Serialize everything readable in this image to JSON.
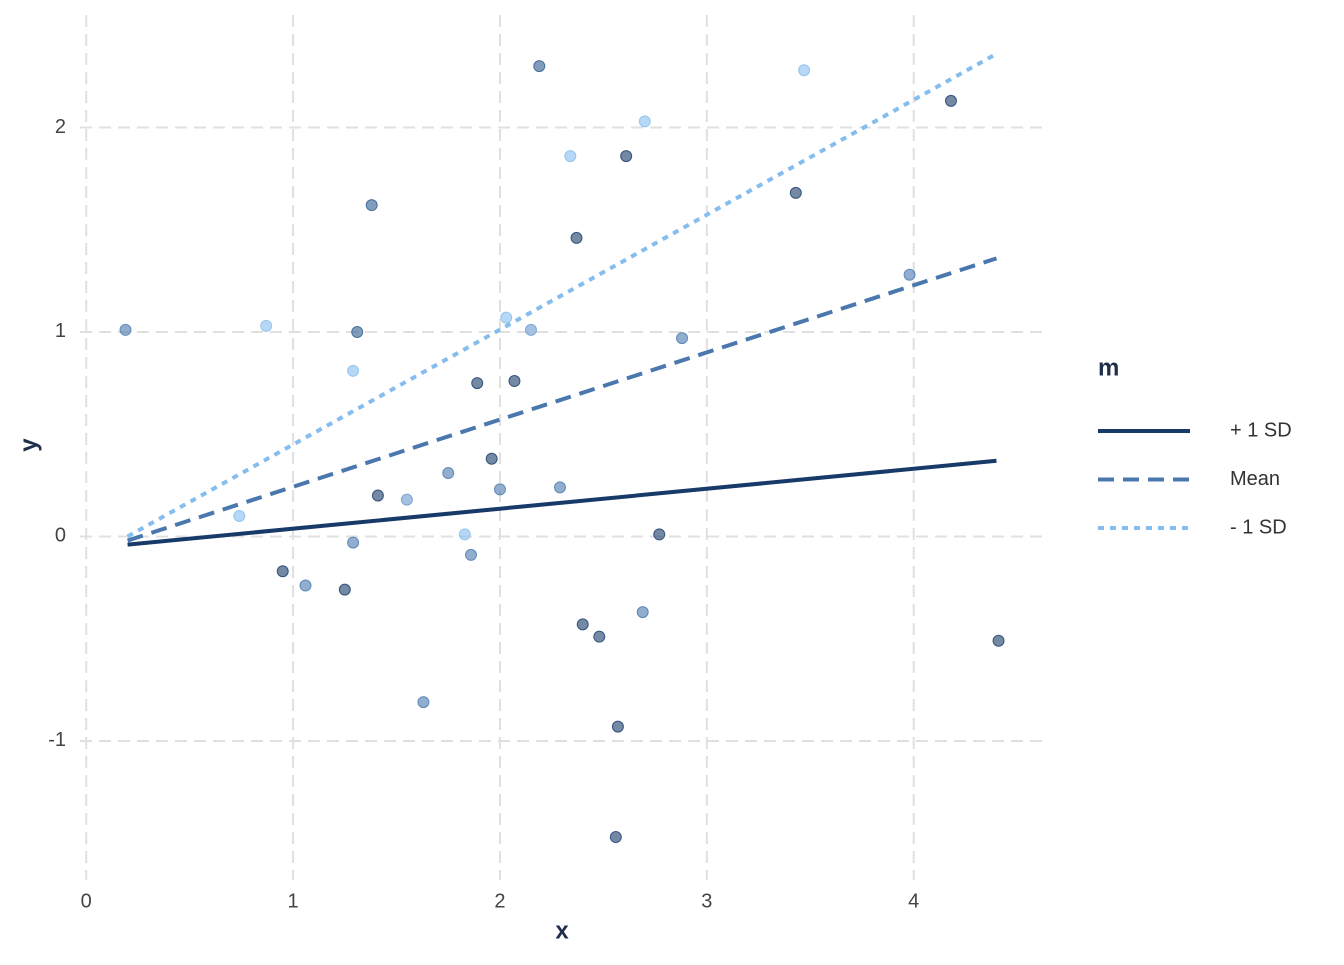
{
  "chart_data": {
    "type": "scatter",
    "xlabel": "x",
    "ylabel": "y",
    "xlim": [
      -0.03,
      4.62
    ],
    "ylim": [
      -1.68,
      2.55
    ],
    "xticks": [
      0,
      1,
      2,
      3,
      4
    ],
    "yticks": [
      -1,
      0,
      1,
      2
    ],
    "grid": true,
    "legend_title": "m",
    "legend_position": "right",
    "series": [
      {
        "name": "+ 1 SD",
        "color": "#173a68",
        "dash": "solid",
        "x": [
          0.2,
          4.4
        ],
        "y": [
          -0.04,
          0.37
        ]
      },
      {
        "name": "Mean",
        "color": "#4a78ae",
        "dash": "dashed",
        "x": [
          0.2,
          4.4
        ],
        "y": [
          -0.02,
          1.36
        ]
      },
      {
        "name": "- 1 SD",
        "color": "#85bdee",
        "dash": "dotted",
        "x": [
          0.2,
          4.4
        ],
        "y": [
          0.0,
          2.36
        ]
      }
    ],
    "points": {
      "x": [
        0.19,
        0.87,
        0.74,
        0.95,
        1.06,
        1.25,
        1.29,
        1.29,
        1.31,
        1.38,
        1.41,
        1.55,
        1.63,
        1.75,
        1.83,
        1.86,
        1.89,
        1.96,
        2.0,
        2.03,
        2.07,
        2.15,
        2.19,
        2.29,
        2.34,
        2.37,
        2.4,
        2.48,
        2.56,
        2.57,
        2.61,
        2.69,
        2.7,
        2.77,
        2.88,
        3.43,
        3.47,
        3.98,
        4.18,
        4.41
      ],
      "y": [
        1.01,
        1.03,
        0.1,
        -0.17,
        -0.24,
        -0.26,
        -0.03,
        0.81,
        1.0,
        1.62,
        0.2,
        0.18,
        -0.81,
        0.31,
        0.01,
        -0.09,
        0.75,
        0.38,
        0.23,
        1.07,
        0.76,
        1.01,
        2.3,
        0.24,
        1.86,
        1.46,
        -0.43,
        -0.49,
        -1.47,
        -0.93,
        1.86,
        -0.37,
        2.03,
        0.01,
        0.97,
        1.68,
        2.28,
        1.28,
        2.13,
        -0.51
      ],
      "colors": [
        "#4a78ae",
        "#85bdee",
        "#85bdee",
        "#173a68",
        "#4a78ae",
        "#173a68",
        "#4a78ae",
        "#85bdee",
        "#2e5a8e",
        "#2e5a8e",
        "#173a68",
        "#6a9ad0",
        "#4a78ae",
        "#4a78ae",
        "#85bdee",
        "#4a78ae",
        "#173a68",
        "#173a68",
        "#4a78ae",
        "#85bdee",
        "#173a68",
        "#6a9ad0",
        "#2e5a8e",
        "#4a78ae",
        "#85bdee",
        "#173a68",
        "#173a68",
        "#173a68",
        "#173a68",
        "#173a68",
        "#173a68",
        "#4a78ae",
        "#85bdee",
        "#173a68",
        "#4a78ae",
        "#173a68",
        "#85bdee",
        "#4a78ae",
        "#173a68",
        "#173a68"
      ]
    }
  }
}
